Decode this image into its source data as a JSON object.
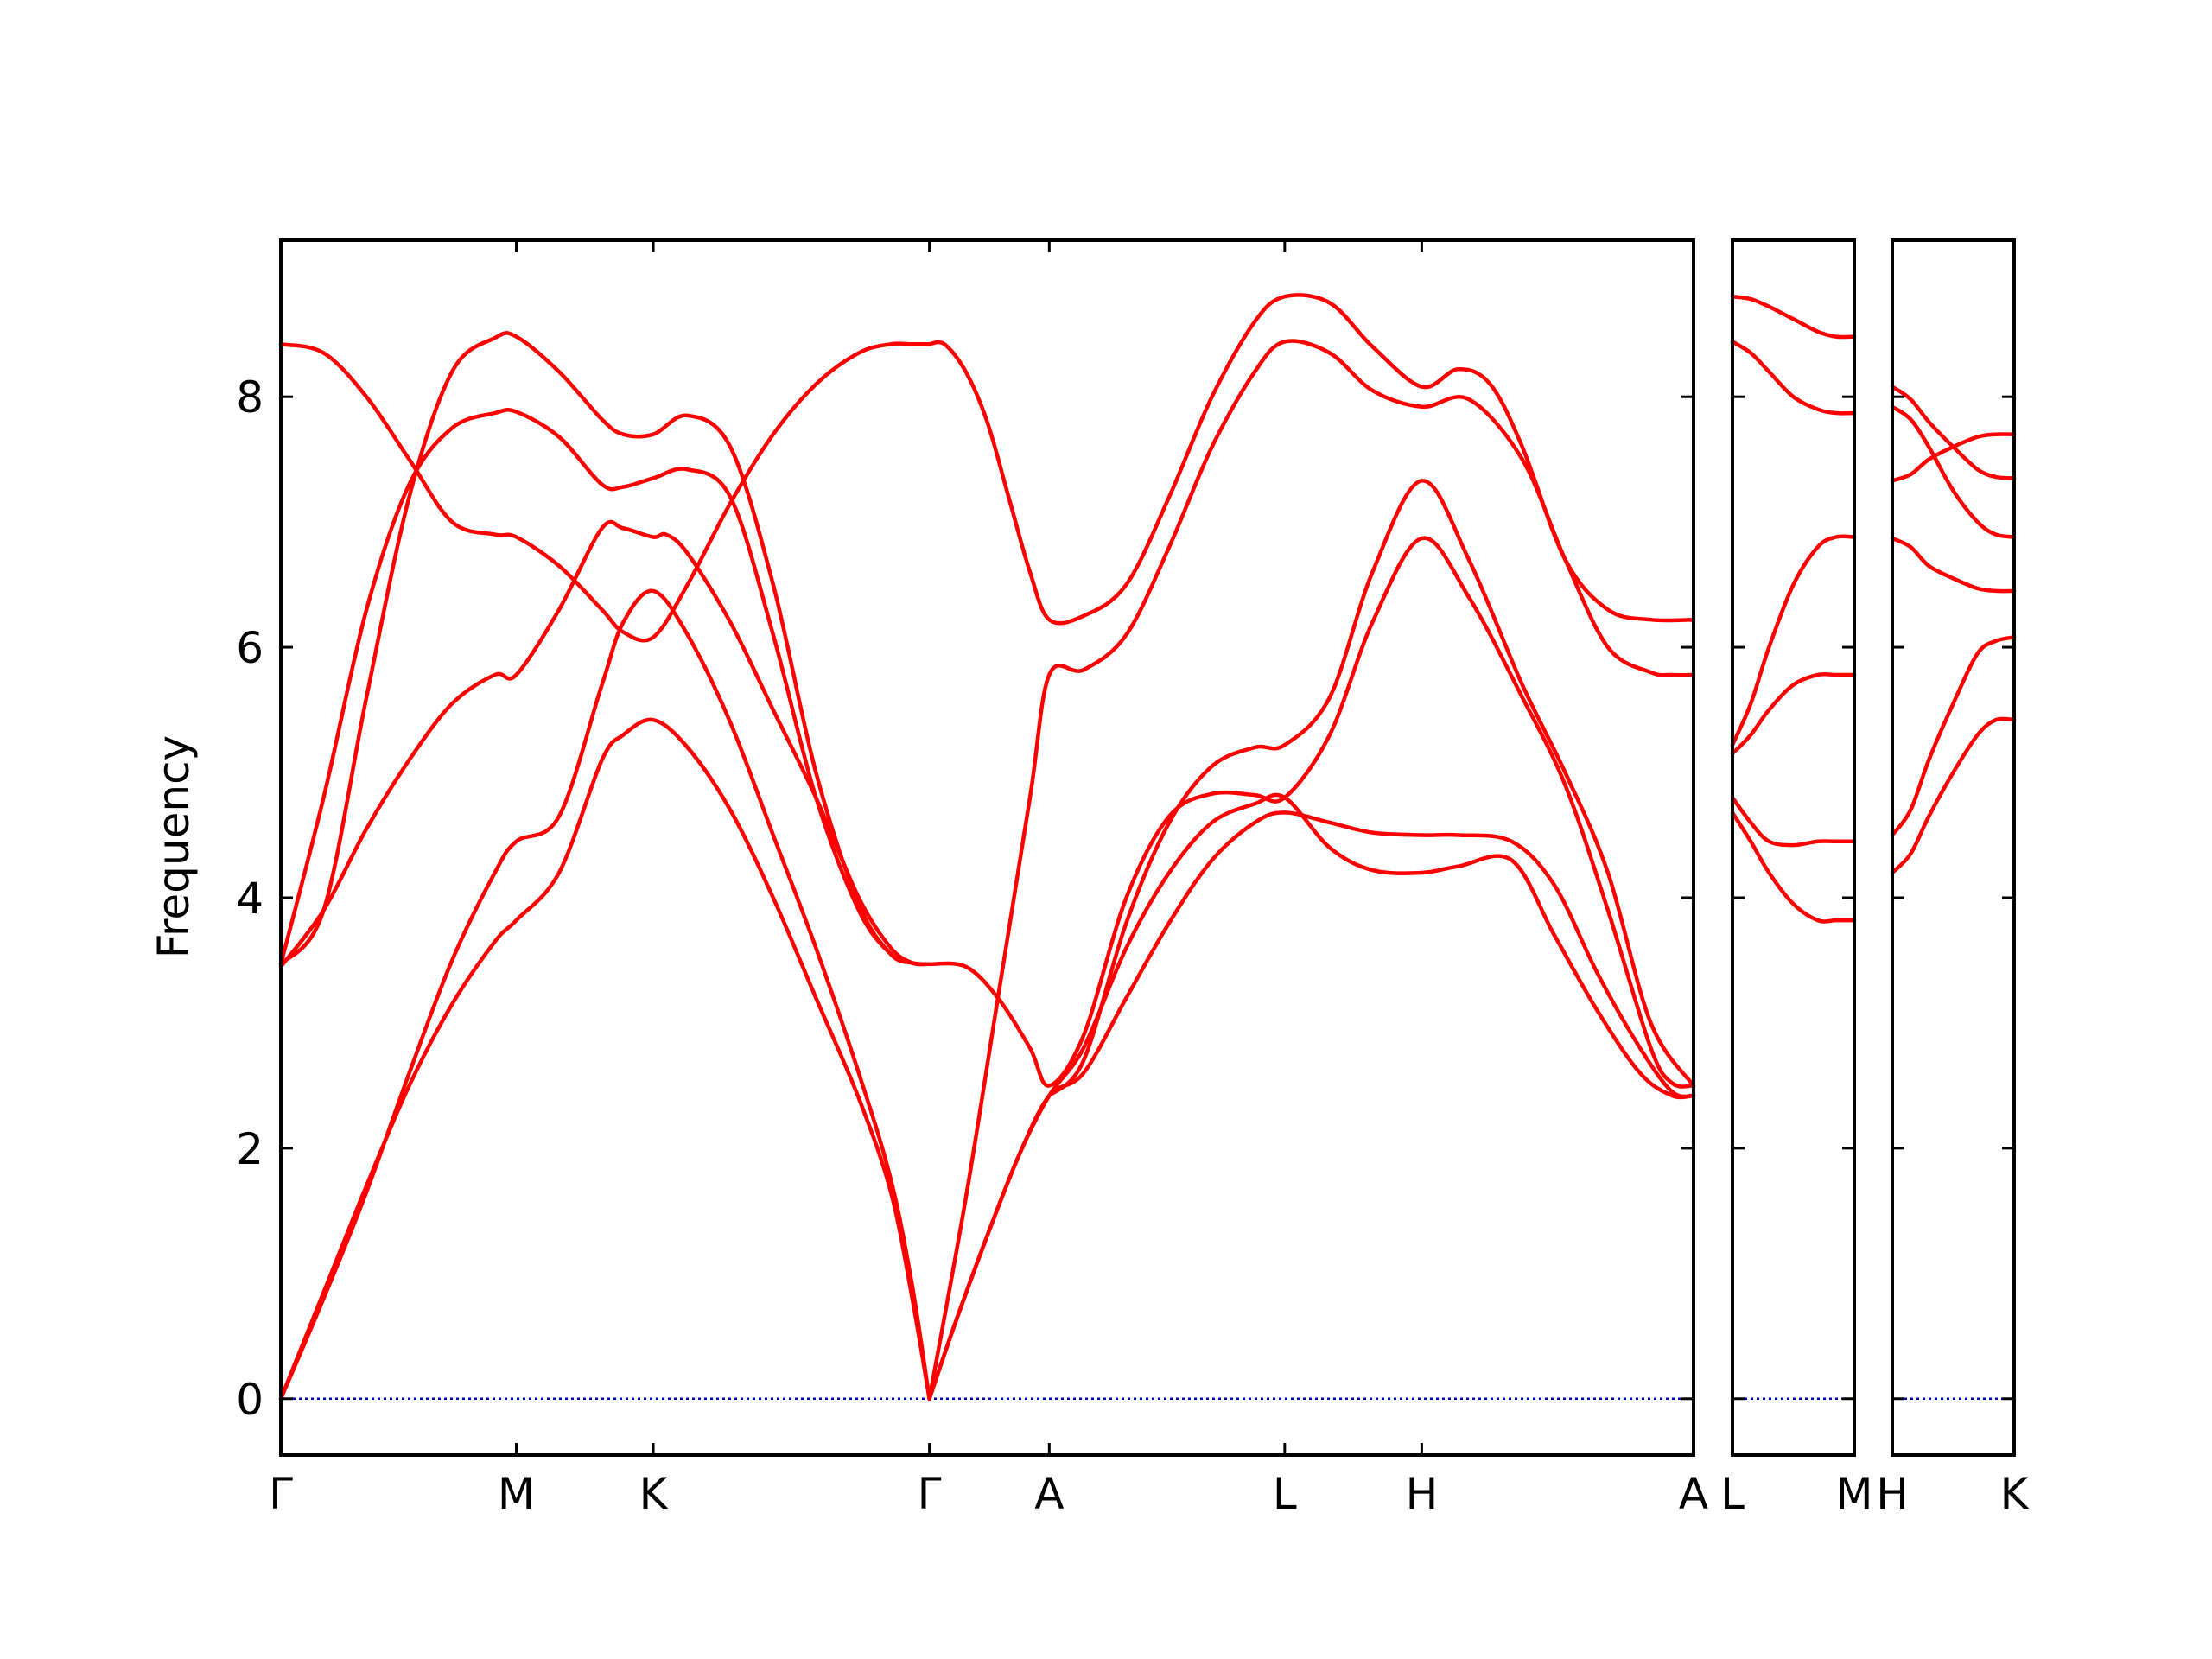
{
  "chart_data": {
    "type": "line",
    "ylabel": "Frequency",
    "ylim": [
      -0.45,
      9.25
    ],
    "yticks": [
      0,
      2,
      4,
      6,
      8
    ],
    "grid": false,
    "legend": "none",
    "colors": {
      "bands": "#ff0000",
      "zero_line": "#0000cc",
      "frame": "#000000"
    },
    "panels": [
      {
        "name": "panel-main",
        "xlim": [
          0,
          6.6
        ],
        "xticks": [
          {
            "label": "Γ",
            "x": 0.0
          },
          {
            "label": "M",
            "x": 1.1
          },
          {
            "label": "K",
            "x": 1.74
          },
          {
            "label": "Γ",
            "x": 3.03
          },
          {
            "label": "A",
            "x": 3.59
          },
          {
            "label": "L",
            "x": 4.69
          },
          {
            "label": "H",
            "x": 5.33
          },
          {
            "label": "A",
            "x": 6.6
          }
        ],
        "series": [
          {
            "x": [
              0.0,
              0.2,
              0.4,
              0.6,
              0.8,
              1.0,
              1.1,
              1.3,
              1.5,
              1.6,
              1.74,
              1.9,
              2.1,
              2.3,
              2.5,
              2.7,
              2.85,
              2.95,
              3.03
            ],
            "y": [
              0.0,
              0.85,
              1.7,
              2.5,
              3.15,
              3.65,
              3.82,
              4.2,
              5.1,
              5.3,
              5.42,
              5.2,
              4.7,
              4.0,
              3.2,
              2.4,
              1.65,
              0.8,
              0.0
            ]
          },
          {
            "x": [
              0.0,
              0.2,
              0.4,
              0.6,
              0.8,
              1.0,
              1.1,
              1.3,
              1.5,
              1.6,
              1.74,
              1.9,
              2.1,
              2.3,
              2.5,
              2.7,
              2.85,
              2.95,
              3.03
            ],
            "y": [
              0.0,
              0.8,
              1.65,
              2.6,
              3.5,
              4.2,
              4.45,
              4.65,
              5.7,
              6.2,
              6.45,
              6.1,
              5.4,
              4.5,
              3.6,
              2.6,
              1.75,
              0.9,
              0.0
            ]
          },
          {
            "x": [
              0.0,
              0.2,
              0.4,
              0.6,
              0.8,
              1.0,
              1.1,
              1.3,
              1.5,
              1.6,
              1.74,
              1.8,
              1.9,
              2.1,
              2.3,
              2.5,
              2.7,
              2.85,
              2.95,
              3.03
            ],
            "y": [
              3.45,
              3.9,
              4.55,
              5.1,
              5.55,
              5.78,
              5.78,
              6.3,
              6.95,
              6.95,
              6.88,
              6.9,
              6.75,
              6.2,
              5.5,
              4.8,
              4.0,
              3.6,
              3.48,
              3.47
            ]
          },
          {
            "x": [
              0.0,
              0.2,
              0.4,
              0.6,
              0.8,
              1.0,
              1.1,
              1.3,
              1.5,
              1.6,
              1.74,
              1.9,
              2.1,
              2.3,
              2.5,
              2.7,
              2.85,
              2.95,
              3.03
            ],
            "y": [
              3.47,
              4.8,
              6.3,
              7.3,
              7.75,
              7.87,
              7.88,
              7.68,
              7.3,
              7.28,
              7.35,
              7.42,
              7.2,
              6.1,
              4.8,
              3.9,
              3.55,
              3.48,
              3.47
            ]
          },
          {
            "x": [
              0.0,
              0.2,
              0.4,
              0.6,
              0.8,
              1.0,
              1.1,
              1.3,
              1.5,
              1.6,
              1.74,
              1.9,
              2.1,
              2.3,
              2.5,
              2.7,
              2.85,
              2.95,
              3.03
            ],
            "y": [
              3.47,
              3.9,
              5.6,
              7.2,
              8.2,
              8.47,
              8.48,
              8.2,
              7.82,
              7.7,
              7.7,
              7.85,
              7.6,
              6.5,
              5.0,
              3.95,
              3.55,
              3.48,
              3.47
            ]
          },
          {
            "x": [
              0.0,
              0.2,
              0.4,
              0.6,
              0.8,
              1.0,
              1.1,
              1.3,
              1.5,
              1.6,
              1.74,
              1.9,
              2.1,
              2.3,
              2.5,
              2.7,
              2.85,
              2.95,
              3.03
            ],
            "y": [
              8.42,
              8.35,
              8.0,
              7.5,
              7.0,
              6.9,
              6.88,
              6.65,
              6.3,
              6.12,
              6.08,
              6.5,
              7.15,
              7.7,
              8.1,
              8.35,
              8.42,
              8.42,
              8.42
            ]
          },
          {
            "x": [
              3.03,
              3.15,
              3.3,
              3.45,
              3.59,
              3.75,
              3.95,
              4.15,
              4.35,
              4.55,
              4.69,
              4.9,
              5.1,
              5.33,
              5.5,
              5.75,
              5.95,
              6.15,
              6.35,
              6.5,
              6.6
            ],
            "y": [
              0.0,
              0.6,
              1.3,
              1.95,
              2.42,
              2.6,
              3.2,
              3.8,
              4.3,
              4.6,
              4.68,
              4.6,
              4.52,
              4.5,
              4.5,
              4.45,
              4.1,
              3.4,
              2.8,
              2.45,
              2.42
            ]
          },
          {
            "x": [
              3.03,
              3.15,
              3.3,
              3.45,
              3.59,
              3.75,
              3.95,
              4.15,
              4.35,
              4.55,
              4.69,
              4.9,
              5.1,
              5.33,
              5.5,
              5.75,
              5.95,
              6.15,
              6.35,
              6.5,
              6.6
            ],
            "y": [
              0.0,
              0.6,
              1.3,
              1.95,
              2.42,
              2.8,
              3.6,
              4.2,
              4.6,
              4.75,
              4.8,
              4.4,
              4.22,
              4.2,
              4.25,
              4.3,
              3.7,
              3.1,
              2.6,
              2.42,
              2.42
            ]
          },
          {
            "x": [
              3.03,
              3.2,
              3.35,
              3.5,
              3.59,
              3.75,
              3.95,
              4.15,
              4.35,
              4.55,
              4.69,
              4.9,
              5.1,
              5.33,
              5.55,
              5.8,
              6.0,
              6.2,
              6.4,
              6.5,
              6.6
            ],
            "y": [
              3.47,
              3.45,
              3.2,
              2.8,
              2.5,
              2.9,
              4.0,
              4.65,
              4.83,
              4.82,
              4.8,
              5.3,
              6.2,
              6.87,
              6.4,
              5.6,
              4.9,
              3.9,
              2.8,
              2.52,
              2.5
            ]
          },
          {
            "x": [
              3.03,
              3.2,
              3.35,
              3.5,
              3.59,
              3.75,
              3.95,
              4.15,
              4.35,
              4.55,
              4.69,
              4.9,
              5.1,
              5.33,
              5.55,
              5.8,
              6.0,
              6.2,
              6.4,
              6.5,
              6.6
            ],
            "y": [
              0.0,
              1.6,
              3.2,
              4.8,
              5.78,
              5.82,
              6.1,
              6.8,
              7.6,
              8.2,
              8.44,
              8.35,
              8.05,
              7.92,
              7.98,
              7.5,
              6.7,
              6.0,
              5.8,
              5.78,
              5.78
            ]
          },
          {
            "x": [
              3.03,
              3.1,
              3.2,
              3.3,
              3.4,
              3.5,
              3.59,
              3.75,
              3.95,
              4.15,
              4.35,
              4.55,
              4.69,
              4.9,
              5.1,
              5.33,
              5.5,
              5.65,
              5.8,
              6.0,
              6.2,
              6.4,
              6.6
            ],
            "y": [
              8.42,
              8.42,
              8.2,
              7.8,
              7.2,
              6.6,
              6.22,
              6.25,
              6.5,
              7.2,
              8.0,
              8.6,
              8.8,
              8.75,
              8.4,
              8.08,
              8.22,
              8.1,
              7.6,
              6.7,
              6.3,
              6.22,
              6.22
            ]
          },
          {
            "x": [
              3.59,
              3.75,
              3.95,
              4.15,
              4.35,
              4.55,
              4.69,
              4.9,
              5.1,
              5.33,
              5.55,
              5.8,
              6.0,
              6.2,
              6.4,
              6.6
            ],
            "y": [
              2.42,
              2.7,
              3.8,
              4.6,
              5.05,
              5.2,
              5.22,
              5.6,
              6.6,
              7.33,
              6.7,
              5.7,
              5.0,
              4.2,
              3.0,
              2.5
            ]
          }
        ]
      },
      {
        "name": "panel-L-M",
        "xlim": [
          0,
          1
        ],
        "xticks": [
          {
            "label": "L",
            "x": 0.0
          },
          {
            "label": "M",
            "x": 1.0
          }
        ],
        "series": [
          {
            "x": [
              0.0,
              0.15,
              0.3,
              0.5,
              0.7,
              0.85,
              1.0
            ],
            "y": [
              4.68,
              4.45,
              4.2,
              3.95,
              3.82,
              3.82,
              3.82
            ]
          },
          {
            "x": [
              0.0,
              0.15,
              0.3,
              0.5,
              0.7,
              0.85,
              1.0
            ],
            "y": [
              4.8,
              4.6,
              4.45,
              4.42,
              4.45,
              4.45,
              4.45
            ]
          },
          {
            "x": [
              0.0,
              0.15,
              0.3,
              0.5,
              0.7,
              0.85,
              1.0
            ],
            "y": [
              5.15,
              5.3,
              5.5,
              5.7,
              5.78,
              5.78,
              5.78
            ]
          },
          {
            "x": [
              0.0,
              0.15,
              0.3,
              0.5,
              0.7,
              0.85,
              1.0
            ],
            "y": [
              5.22,
              5.55,
              6.0,
              6.5,
              6.8,
              6.88,
              6.88
            ]
          },
          {
            "x": [
              0.0,
              0.15,
              0.3,
              0.5,
              0.7,
              0.85,
              1.0
            ],
            "y": [
              8.44,
              8.35,
              8.2,
              8.0,
              7.9,
              7.87,
              7.87
            ]
          },
          {
            "x": [
              0.0,
              0.15,
              0.3,
              0.5,
              0.7,
              0.85,
              1.0
            ],
            "y": [
              8.8,
              8.78,
              8.72,
              8.62,
              8.52,
              8.48,
              8.48
            ]
          }
        ]
      },
      {
        "name": "panel-H-K",
        "xlim": [
          0,
          1
        ],
        "xticks": [
          {
            "label": "H",
            "x": 0.0
          },
          {
            "label": "K",
            "x": 1.0
          }
        ],
        "series": [
          {
            "x": [
              0.0,
              0.15,
              0.3,
              0.5,
              0.7,
              0.85,
              1.0
            ],
            "y": [
              4.2,
              4.35,
              4.65,
              5.0,
              5.3,
              5.42,
              5.42
            ]
          },
          {
            "x": [
              0.0,
              0.15,
              0.3,
              0.5,
              0.7,
              0.85,
              1.0
            ],
            "y": [
              4.5,
              4.7,
              5.1,
              5.55,
              5.95,
              6.05,
              6.08
            ]
          },
          {
            "x": [
              0.0,
              0.15,
              0.3,
              0.5,
              0.7,
              0.85,
              1.0
            ],
            "y": [
              6.87,
              6.8,
              6.65,
              6.55,
              6.47,
              6.45,
              6.45
            ]
          },
          {
            "x": [
              0.0,
              0.15,
              0.3,
              0.5,
              0.7,
              0.85,
              1.0
            ],
            "y": [
              7.33,
              7.38,
              7.5,
              7.6,
              7.68,
              7.7,
              7.7
            ]
          },
          {
            "x": [
              0.0,
              0.15,
              0.3,
              0.5,
              0.7,
              0.85,
              1.0
            ],
            "y": [
              7.92,
              7.82,
              7.6,
              7.25,
              7.0,
              6.9,
              6.88
            ]
          },
          {
            "x": [
              0.0,
              0.15,
              0.3,
              0.5,
              0.7,
              0.85,
              1.0
            ],
            "y": [
              8.08,
              7.98,
              7.8,
              7.6,
              7.42,
              7.36,
              7.35
            ]
          }
        ]
      }
    ]
  }
}
